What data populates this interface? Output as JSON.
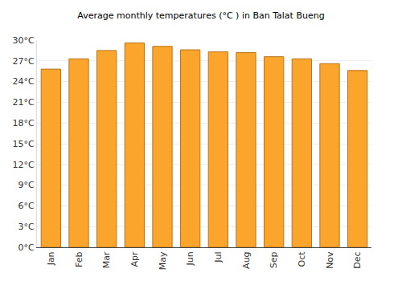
{
  "chart_data": {
    "type": "bar",
    "title": "Average monthly temperatures (°C ) in Ban Talat Bueng",
    "categories": [
      "Jan",
      "Feb",
      "Mar",
      "Apr",
      "May",
      "Jun",
      "Jul",
      "Aug",
      "Sep",
      "Oct",
      "Nov",
      "Dec"
    ],
    "values": [
      25.8,
      27.3,
      28.5,
      29.6,
      29.1,
      28.6,
      28.3,
      28.2,
      27.6,
      27.3,
      26.6,
      25.6
    ],
    "color": "#fca52c",
    "ylim": [
      0,
      30
    ],
    "yticks": [
      {
        "value": 0,
        "label": "0°C"
      },
      {
        "value": 3,
        "label": "3°C"
      },
      {
        "value": 6,
        "label": "6°C"
      },
      {
        "value": 9,
        "label": "9°C"
      },
      {
        "value": 12,
        "label": "12°C"
      },
      {
        "value": 15,
        "label": "15°C"
      },
      {
        "value": 18,
        "label": "18°C"
      },
      {
        "value": 21,
        "label": "21°C"
      },
      {
        "value": 24,
        "label": "24°C"
      },
      {
        "value": 27,
        "label": "27°C"
      },
      {
        "value": 30,
        "label": "30°C"
      }
    ],
    "grid": true
  }
}
